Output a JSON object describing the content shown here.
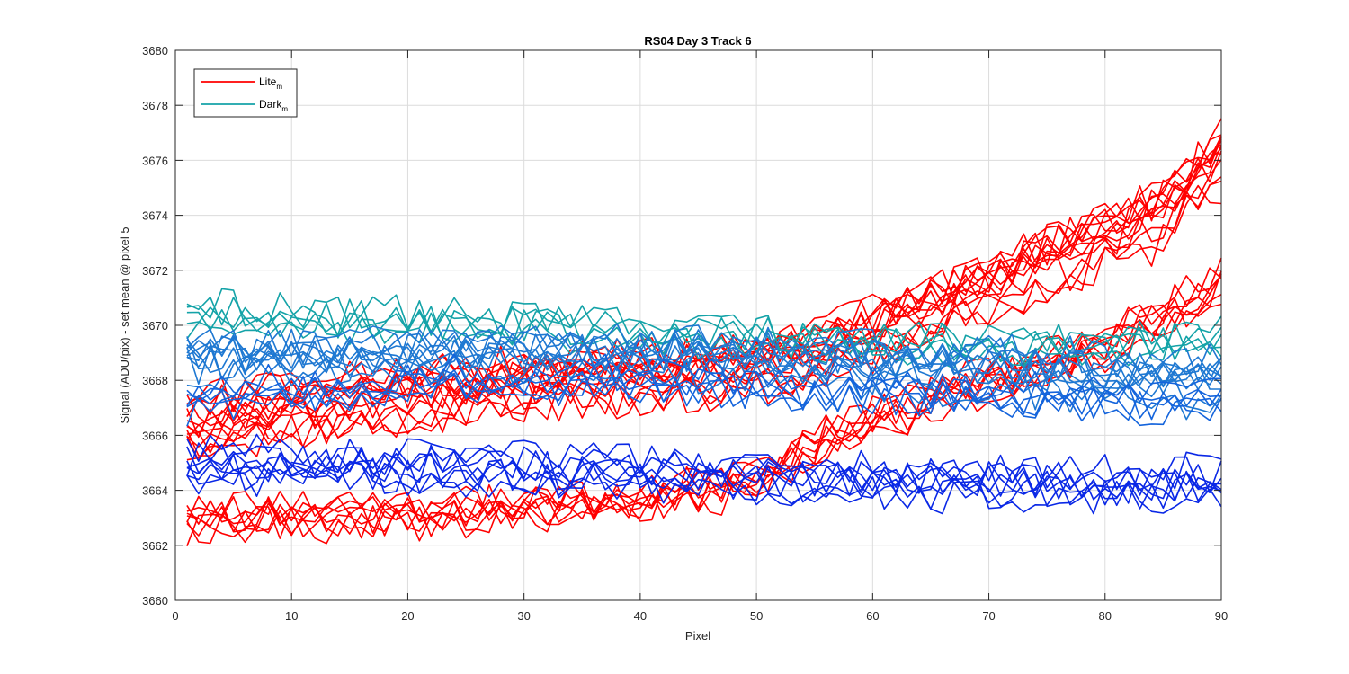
{
  "chart_data": {
    "type": "line",
    "title": "RS04 Day 3 Track 6",
    "xlabel": "Pixel",
    "ylabel": "Signal (ADU/pix) - set mean @ pixel 5",
    "xlim": [
      0,
      90
    ],
    "ylim": [
      3660,
      3680
    ],
    "xticks": [
      0,
      10,
      20,
      30,
      40,
      50,
      60,
      70,
      80,
      90
    ],
    "yticks": [
      3660,
      3662,
      3664,
      3666,
      3668,
      3670,
      3672,
      3674,
      3676,
      3678,
      3680
    ],
    "grid": true,
    "legend_position": "top-left",
    "legend": [
      {
        "name": "Lite",
        "subscript": "m",
        "color": "#ff0000"
      },
      {
        "name": "Dark",
        "subscript": "m",
        "color": "#14a3a8"
      }
    ],
    "x_range": [
      1,
      90
    ],
    "series_groups": [
      {
        "label": "Lite lower band",
        "color": "#ff0000",
        "count": 8,
        "profile": [
          [
            1,
            3662.9
          ],
          [
            20,
            3663.0
          ],
          [
            40,
            3663.6
          ],
          [
            50,
            3664.3
          ],
          [
            55,
            3665.6
          ],
          [
            62,
            3666.8
          ],
          [
            70,
            3668.0
          ],
          [
            80,
            3669.2
          ],
          [
            90,
            3671.5
          ]
        ],
        "spread": 0.5
      },
      {
        "label": "Lite upper band",
        "color": "#ff0000",
        "count": 14,
        "profile": [
          [
            1,
            3666.5
          ],
          [
            10,
            3667.0
          ],
          [
            20,
            3667.5
          ],
          [
            30,
            3668.0
          ],
          [
            40,
            3668.3
          ],
          [
            50,
            3668.6
          ],
          [
            55,
            3669.2
          ],
          [
            60,
            3669.9
          ],
          [
            65,
            3670.8
          ],
          [
            70,
            3671.6
          ],
          [
            75,
            3672.5
          ],
          [
            80,
            3673.3
          ],
          [
            85,
            3674.2
          ],
          [
            90,
            3676.3
          ]
        ],
        "spread": 1.0
      },
      {
        "label": "Dark upper",
        "color": "#14a3a8",
        "count": 5,
        "profile": [
          [
            1,
            3670.5
          ],
          [
            20,
            3670.3
          ],
          [
            40,
            3669.9
          ],
          [
            60,
            3669.5
          ],
          [
            80,
            3669.3
          ],
          [
            90,
            3669.8
          ]
        ],
        "spread": 0.4
      },
      {
        "label": "Dark middle",
        "color": "#1e78d2",
        "count": 10,
        "profile": [
          [
            1,
            3668.8
          ],
          [
            20,
            3668.9
          ],
          [
            40,
            3668.9
          ],
          [
            60,
            3668.6
          ],
          [
            80,
            3668.2
          ],
          [
            90,
            3668.0
          ]
        ],
        "spread": 0.6
      },
      {
        "label": "Dark mid-lower",
        "color": "#1464dc",
        "count": 5,
        "profile": [
          [
            1,
            3667.3
          ],
          [
            20,
            3667.9
          ],
          [
            40,
            3668.0
          ],
          [
            60,
            3667.6
          ],
          [
            80,
            3667.4
          ],
          [
            90,
            3667.2
          ]
        ],
        "spread": 0.4
      },
      {
        "label": "Dark lower",
        "color": "#0a28e6",
        "count": 8,
        "profile": [
          [
            1,
            3665.0
          ],
          [
            20,
            3664.8
          ],
          [
            40,
            3664.6
          ],
          [
            60,
            3664.3
          ],
          [
            80,
            3664.1
          ],
          [
            90,
            3664.2
          ]
        ],
        "spread": 0.5
      }
    ]
  }
}
